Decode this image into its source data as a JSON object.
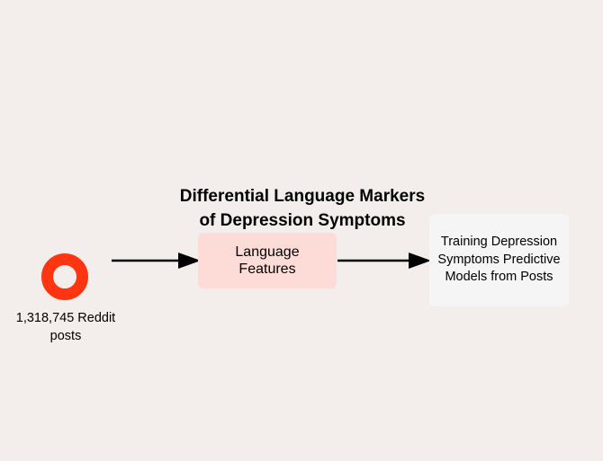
{
  "diagram": {
    "title_lines": [
      "Differential Language Markers",
      "of Depression Symptoms"
    ],
    "source": {
      "icon": "reddit-logo-icon",
      "label_lines": [
        "1,318,745 Reddit",
        "posts"
      ]
    },
    "features_box": {
      "label_lines": [
        "Language",
        "Features"
      ]
    },
    "models_box": {
      "label_lines": [
        "Training Depression",
        "Symptoms Predictive",
        "Models from Posts"
      ]
    },
    "colors": {
      "background": "#f3eeec",
      "icon_red": "#ff3410",
      "features_box_fill": "#fddcd8",
      "models_box_fill": "#f5f5f5",
      "arrow": "#000000"
    }
  }
}
